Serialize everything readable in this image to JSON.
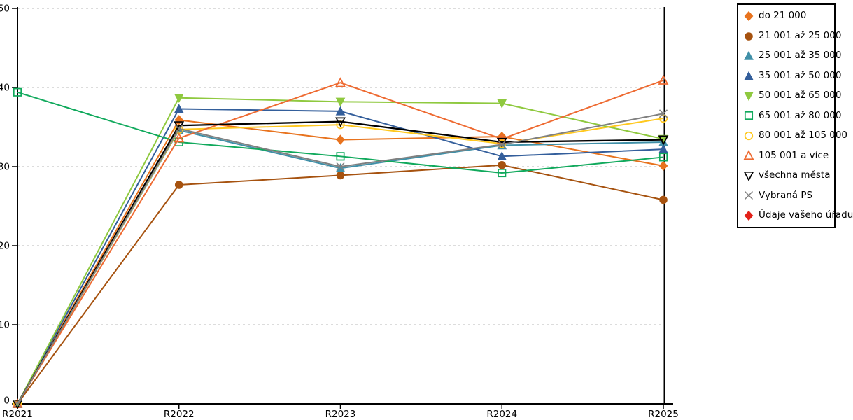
{
  "chart_data": {
    "type": "line",
    "title": "",
    "xlabel": "",
    "ylabel": "",
    "categories": [
      "R2021",
      "R2022",
      "R2023",
      "R2024",
      "R2025"
    ],
    "ylim": [
      0,
      50
    ],
    "yticks": [
      0,
      10,
      20,
      30,
      40,
      50
    ],
    "grid": "dashed-horizontal",
    "legend_position": "right-outside",
    "series": [
      {
        "name": "do 21 000",
        "color": "#E8731E",
        "marker": "diamond",
        "fill": "filled",
        "values": [
          0,
          35.9,
          33.4,
          33.8,
          30.1
        ]
      },
      {
        "name": "21 001 až 25 000",
        "color": "#A6520F",
        "marker": "circle",
        "fill": "filled",
        "values": [
          0,
          27.7,
          28.9,
          30.2,
          25.8
        ]
      },
      {
        "name": "25 001 až 35 000",
        "color": "#4090A8",
        "marker": "triangle-up",
        "fill": "filled",
        "values": [
          0,
          34.6,
          29.8,
          32.7,
          33.1
        ]
      },
      {
        "name": "35 001 až 50 000",
        "color": "#335E9B",
        "marker": "triangle-up",
        "fill": "filled",
        "values": [
          0,
          37.3,
          37.0,
          31.3,
          32.2
        ]
      },
      {
        "name": "50 001 až 65 000",
        "color": "#8FC93F",
        "marker": "triangle-down",
        "fill": "filled",
        "values": [
          0,
          38.7,
          38.2,
          38.0,
          33.5
        ]
      },
      {
        "name": "65 001 až 80 000",
        "color": "#10A95C",
        "marker": "square",
        "fill": "hollow",
        "values": [
          39.4,
          33.1,
          31.3,
          29.2,
          31.2
        ]
      },
      {
        "name": "80 001 až 105 000",
        "color": "#FFC81E",
        "marker": "circle",
        "fill": "hollow",
        "values": [
          0,
          34.7,
          35.3,
          32.9,
          36.1
        ]
      },
      {
        "name": "105 001 a více",
        "color": "#EE6A31",
        "marker": "triangle-up",
        "fill": "hollow",
        "values": [
          0,
          33.6,
          40.6,
          33.5,
          40.9
        ]
      },
      {
        "name": "všechna města",
        "color": "#000000",
        "marker": "triangle-down",
        "fill": "hollow",
        "values": [
          0,
          35.2,
          35.7,
          33.1,
          33.4
        ]
      },
      {
        "name": "Vybraná PS",
        "color": "#808080",
        "marker": "x",
        "fill": "hollow",
        "values": [
          0,
          34.8,
          30.0,
          32.8,
          36.7
        ]
      },
      {
        "name": "Údaje vašeho úřadu",
        "color": "#E32119",
        "marker": "diamond",
        "fill": "filled",
        "values": [
          null,
          null,
          null,
          null,
          null
        ]
      }
    ],
    "colors": {
      "axis": "#000000",
      "gridline": "#c8c8c8",
      "background": "#ffffff"
    }
  }
}
